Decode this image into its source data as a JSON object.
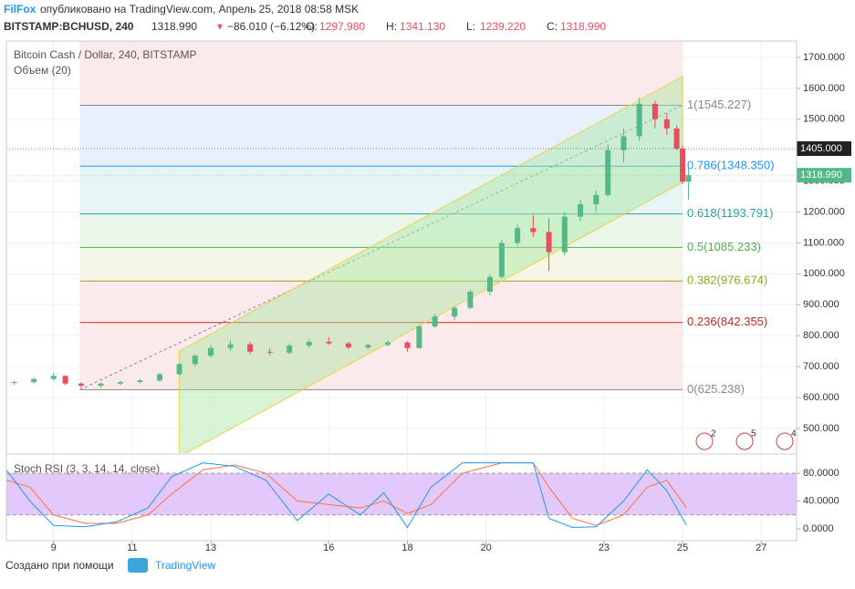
{
  "header": {
    "author": "FilFox",
    "published": "опубликовано на TradingView.com, Апрель 25, 2018 08:58 MSK",
    "symbol": "BITSTAMP:BCHUSD, 240",
    "last": "1318.990",
    "arrow": "▼",
    "change": "−86.010 (−6.12%)",
    "ohlc": [
      {
        "label": "O:",
        "value": "1297.980"
      },
      {
        "label": "H:",
        "value": "1341.130"
      },
      {
        "label": "L:",
        "value": "1239.220"
      },
      {
        "label": "C:",
        "value": "1318.990"
      }
    ]
  },
  "footer": {
    "made_with": "Создано при помощи",
    "brand": "TradingView"
  },
  "chart_data": {
    "type": "candlestick",
    "title": "Bitcoin Cash / Dollar, 240, BITSTAMP",
    "volume_label": "Объем (20)",
    "xlim": [
      7.8,
      27.9
    ],
    "xticks": [
      9,
      11,
      13,
      16,
      18,
      20,
      23,
      25,
      27
    ],
    "ylim": [
      420,
      1753
    ],
    "yticks": [
      {
        "value": 500,
        "label": "500.000"
      },
      {
        "value": 600,
        "label": "600.000"
      },
      {
        "value": 700,
        "label": "700.000"
      },
      {
        "value": 800,
        "label": "800.000"
      },
      {
        "value": 900,
        "label": "900.000"
      },
      {
        "value": 1000,
        "label": "1000.000"
      },
      {
        "value": 1100,
        "label": "1100.000"
      },
      {
        "value": 1200,
        "label": "1200.000"
      },
      {
        "value": 1300,
        "label": "1300.000"
      },
      {
        "value": 1400,
        "label": "1400.000"
      },
      {
        "value": 1500,
        "label": "1500.000"
      },
      {
        "value": 1600,
        "label": "1600.000"
      },
      {
        "value": 1700,
        "label": "1700.000"
      }
    ],
    "up_color": "#53b987",
    "down_color": "#eb4d5c",
    "candles": {
      "x": [
        8.0,
        8.5,
        9.0,
        9.3,
        9.7,
        10.2,
        10.7,
        11.2,
        11.7,
        12.2,
        12.6,
        13.0,
        13.5,
        14.0,
        14.5,
        15.0,
        15.5,
        16.0,
        16.5,
        17.0,
        17.5,
        18.0,
        18.3,
        18.7,
        19.2,
        19.6,
        20.1,
        20.4,
        20.8,
        21.2,
        21.6,
        22.0,
        22.4,
        22.8,
        23.1,
        23.5,
        23.9,
        24.3,
        24.6,
        24.85,
        25.0,
        25.15
      ],
      "open": [
        648,
        650,
        660,
        670,
        645,
        638,
        645,
        650,
        655,
        675,
        708,
        735,
        760,
        772,
        748,
        745,
        768,
        780,
        775,
        762,
        770,
        778,
        760,
        830,
        862,
        890,
        942,
        990,
        1100,
        1148,
        1135,
        1070,
        1185,
        1225,
        1255,
        1400,
        1445,
        1550,
        1500,
        1470,
        1405,
        1297.98
      ],
      "high": [
        655,
        665,
        680,
        672,
        650,
        648,
        655,
        660,
        680,
        712,
        740,
        770,
        785,
        780,
        760,
        775,
        790,
        795,
        780,
        775,
        785,
        782,
        835,
        870,
        895,
        950,
        1000,
        1110,
        1160,
        1190,
        1180,
        1200,
        1240,
        1270,
        1420,
        1470,
        1570,
        1560,
        1520,
        1480,
        1415,
        1341.13
      ],
      "low": [
        640,
        645,
        655,
        640,
        630,
        632,
        640,
        645,
        650,
        670,
        700,
        728,
        750,
        740,
        735,
        740,
        760,
        770,
        755,
        755,
        765,
        748,
        758,
        825,
        850,
        885,
        930,
        985,
        1090,
        1120,
        1010,
        1060,
        1170,
        1200,
        1250,
        1360,
        1430,
        1470,
        1450,
        1400,
        1290,
        1239.22
      ],
      "close": [
        650,
        660,
        670,
        645,
        638,
        645,
        650,
        655,
        675,
        708,
        735,
        760,
        772,
        748,
        745,
        768,
        780,
        775,
        762,
        770,
        778,
        760,
        830,
        862,
        890,
        942,
        990,
        1100,
        1148,
        1135,
        1070,
        1185,
        1225,
        1255,
        1400,
        1445,
        1550,
        1500,
        1470,
        1405,
        1297.98,
        1318.99
      ]
    },
    "fib_range": [
      9.67,
      25
    ],
    "fib_levels": [
      {
        "label": "1(1545.227)",
        "value": 1545.227,
        "color": "#888888",
        "fill": "#f2f2f2"
      },
      {
        "label": "0.786(1348.350)",
        "value": 1348.35,
        "color": "#2196f3",
        "fill": "#e8f1fb"
      },
      {
        "label": "0.618(1193.791)",
        "value": 1193.791,
        "color": "#26a69a",
        "fill": "#e6f5f3"
      },
      {
        "label": "0.5(1085.233)",
        "value": 1085.233,
        "color": "#4caf50",
        "fill": "#ebf6eb"
      },
      {
        "label": "0.382(976.674)",
        "value": 976.674,
        "color": "#9aa020",
        "fill": "#f5f6e6"
      },
      {
        "label": "0.236(842.355)",
        "value": 842.355,
        "color": "#c62828",
        "fill": "#fbeaea"
      },
      {
        "label": "0(625.238)",
        "value": 625.238,
        "color": "#888888",
        "fill": "#fbeaea"
      }
    ],
    "top_fill": "#fbeaea",
    "channel": {
      "x": [
        12.2,
        25
      ],
      "upper": [
        750,
        1638
      ],
      "lower": [
        408,
        1296
      ],
      "color": "#a8e6a0"
    },
    "price_badges": [
      {
        "value": 1405,
        "label": "1405.000",
        "color": "#222222"
      },
      {
        "value": 1318.99,
        "label": "1318.990",
        "color": "#53b987"
      }
    ],
    "events": [
      "2",
      "5",
      "4"
    ],
    "stoch": {
      "title": "Stoch RSI (3, 3, 14, 14, close)",
      "ylim": [
        -17,
        105
      ],
      "yticks": [
        {
          "value": 0,
          "label": "0.0000"
        },
        {
          "value": 40,
          "label": "40.0000"
        },
        {
          "value": 80,
          "label": "80.0000"
        }
      ],
      "band": [
        20,
        80
      ],
      "x": [
        7.8,
        8.4,
        9,
        9.8,
        10.6,
        11.4,
        12,
        12.8,
        13.6,
        14.4,
        15.2,
        16,
        16.8,
        17.4,
        18,
        18.6,
        19.4,
        20.4,
        21.2,
        21.6,
        22.2,
        22.8,
        23.5,
        24.1,
        24.6,
        25.1
      ],
      "k": [
        85,
        40,
        5,
        3,
        10,
        30,
        75,
        95,
        90,
        70,
        12,
        50,
        20,
        52,
        2,
        60,
        95,
        95,
        95,
        15,
        2,
        3,
        40,
        85,
        55,
        5
      ],
      "d": [
        70,
        60,
        20,
        8,
        8,
        20,
        50,
        85,
        92,
        80,
        40,
        35,
        30,
        40,
        22,
        35,
        80,
        95,
        95,
        60,
        15,
        5,
        20,
        60,
        70,
        30
      ],
      "k_color": "#2196f3",
      "d_color": "#ff7043"
    }
  }
}
